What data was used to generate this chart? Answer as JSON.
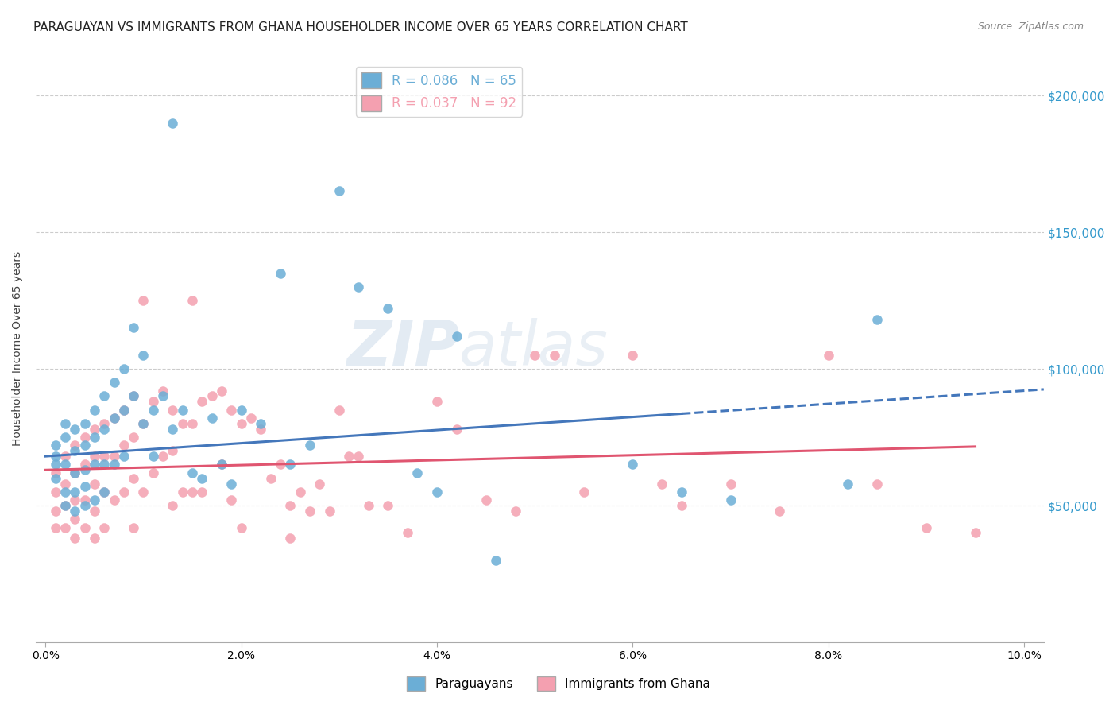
{
  "title": "PARAGUAYAN VS IMMIGRANTS FROM GHANA HOUSEHOLDER INCOME OVER 65 YEARS CORRELATION CHART",
  "source": "Source: ZipAtlas.com",
  "ylabel": "Householder Income Over 65 years",
  "xlabel_ticks": [
    "0.0%",
    "2.0%",
    "4.0%",
    "6.0%",
    "8.0%",
    "10.0%"
  ],
  "xlabel_vals": [
    0.0,
    0.02,
    0.04,
    0.06,
    0.08,
    0.1
  ],
  "ytick_labels": [
    "$50,000",
    "$100,000",
    "$150,000",
    "$200,000"
  ],
  "ytick_vals": [
    50000,
    100000,
    150000,
    200000
  ],
  "ylim": [
    0,
    215000
  ],
  "xlim": [
    -0.001,
    0.102
  ],
  "legend_entries": [
    {
      "label": "R = 0.086   N = 65",
      "color": "#6baed6"
    },
    {
      "label": "R = 0.037   N = 92",
      "color": "#f4a0b0"
    }
  ],
  "legend_series": [
    "Paraguayans",
    "Immigrants from Ghana"
  ],
  "paraguayan_color": "#6baed6",
  "ghana_color": "#f4a0b0",
  "trend_blue_color": "#4477bb",
  "trend_pink_color": "#e05570",
  "watermark_zip": "ZIP",
  "watermark_atlas": "atlas",
  "paraguayan_x": [
    0.001,
    0.001,
    0.001,
    0.001,
    0.002,
    0.002,
    0.002,
    0.002,
    0.002,
    0.003,
    0.003,
    0.003,
    0.003,
    0.003,
    0.004,
    0.004,
    0.004,
    0.004,
    0.004,
    0.005,
    0.005,
    0.005,
    0.005,
    0.006,
    0.006,
    0.006,
    0.006,
    0.007,
    0.007,
    0.007,
    0.008,
    0.008,
    0.008,
    0.009,
    0.009,
    0.01,
    0.01,
    0.011,
    0.011,
    0.012,
    0.013,
    0.013,
    0.014,
    0.015,
    0.016,
    0.017,
    0.018,
    0.019,
    0.02,
    0.022,
    0.024,
    0.025,
    0.027,
    0.03,
    0.032,
    0.035,
    0.038,
    0.04,
    0.042,
    0.046,
    0.06,
    0.065,
    0.07,
    0.082,
    0.085
  ],
  "paraguayan_y": [
    65000,
    72000,
    68000,
    60000,
    80000,
    75000,
    65000,
    55000,
    50000,
    78000,
    70000,
    62000,
    55000,
    48000,
    80000,
    72000,
    63000,
    57000,
    50000,
    85000,
    75000,
    65000,
    52000,
    90000,
    78000,
    65000,
    55000,
    95000,
    82000,
    65000,
    100000,
    85000,
    68000,
    115000,
    90000,
    105000,
    80000,
    85000,
    68000,
    90000,
    190000,
    78000,
    85000,
    62000,
    60000,
    82000,
    65000,
    58000,
    85000,
    80000,
    135000,
    65000,
    72000,
    165000,
    130000,
    122000,
    62000,
    55000,
    112000,
    30000,
    65000,
    55000,
    52000,
    58000,
    118000
  ],
  "ghana_x": [
    0.001,
    0.001,
    0.001,
    0.001,
    0.002,
    0.002,
    0.002,
    0.002,
    0.003,
    0.003,
    0.003,
    0.003,
    0.003,
    0.004,
    0.004,
    0.004,
    0.004,
    0.005,
    0.005,
    0.005,
    0.005,
    0.005,
    0.006,
    0.006,
    0.006,
    0.006,
    0.007,
    0.007,
    0.007,
    0.008,
    0.008,
    0.008,
    0.009,
    0.009,
    0.009,
    0.009,
    0.01,
    0.01,
    0.01,
    0.011,
    0.011,
    0.012,
    0.012,
    0.013,
    0.013,
    0.013,
    0.014,
    0.014,
    0.015,
    0.015,
    0.015,
    0.016,
    0.016,
    0.017,
    0.018,
    0.018,
    0.019,
    0.019,
    0.02,
    0.02,
    0.021,
    0.022,
    0.023,
    0.024,
    0.025,
    0.025,
    0.026,
    0.027,
    0.028,
    0.029,
    0.03,
    0.031,
    0.032,
    0.033,
    0.035,
    0.037,
    0.04,
    0.042,
    0.045,
    0.048,
    0.05,
    0.052,
    0.055,
    0.06,
    0.063,
    0.065,
    0.07,
    0.075,
    0.08,
    0.085,
    0.09,
    0.095
  ],
  "ghana_y": [
    62000,
    55000,
    48000,
    42000,
    68000,
    58000,
    50000,
    42000,
    72000,
    62000,
    52000,
    45000,
    38000,
    75000,
    65000,
    52000,
    42000,
    78000,
    68000,
    58000,
    48000,
    38000,
    80000,
    68000,
    55000,
    42000,
    82000,
    68000,
    52000,
    85000,
    72000,
    55000,
    90000,
    75000,
    60000,
    42000,
    125000,
    80000,
    55000,
    88000,
    62000,
    92000,
    68000,
    85000,
    70000,
    50000,
    80000,
    55000,
    125000,
    80000,
    55000,
    88000,
    55000,
    90000,
    92000,
    65000,
    85000,
    52000,
    80000,
    42000,
    82000,
    78000,
    60000,
    65000,
    50000,
    38000,
    55000,
    48000,
    58000,
    48000,
    85000,
    68000,
    68000,
    50000,
    50000,
    40000,
    88000,
    78000,
    52000,
    48000,
    105000,
    105000,
    55000,
    105000,
    58000,
    50000,
    58000,
    48000,
    105000,
    58000,
    42000,
    40000
  ],
  "title_fontsize": 11,
  "axis_label_fontsize": 10,
  "tick_fontsize": 10,
  "source_fontsize": 9
}
